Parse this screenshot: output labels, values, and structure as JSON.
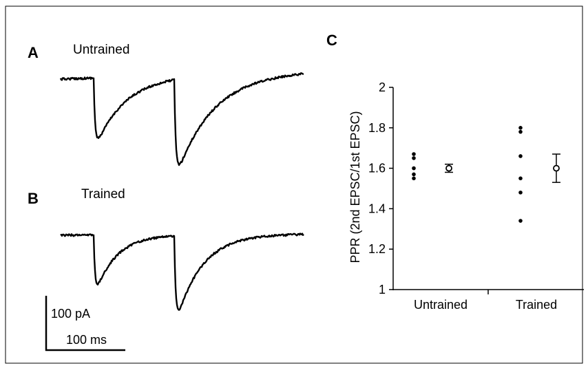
{
  "panels": {
    "a": {
      "letter": "A",
      "title": "Untrained"
    },
    "b": {
      "letter": "B",
      "title": "Trained"
    },
    "c": {
      "letter": "C"
    }
  },
  "scale_bar": {
    "vertical_label": "100 pA",
    "horizontal_label": "100 ms"
  },
  "chart_data": [
    {
      "type": "line",
      "title": "Untrained",
      "description_visible": "paired-pulse EPSC trace"
    },
    {
      "type": "line",
      "title": "Trained",
      "description_visible": "paired-pulse EPSC trace"
    },
    {
      "type": "scatter",
      "title": "",
      "xlabel": "",
      "ylabel": "PPR (2nd EPSC/1st EPSC)",
      "ylim": [
        1,
        2
      ],
      "yticks": [
        1,
        1.2,
        1.4,
        1.6,
        1.8,
        2
      ],
      "categories": [
        "Untrained",
        "Trained"
      ],
      "individual": {
        "Untrained": [
          1.67,
          1.65,
          1.6,
          1.57,
          1.55
        ],
        "Trained": [
          1.8,
          1.78,
          1.66,
          1.55,
          1.48,
          1.34
        ]
      },
      "mean": {
        "Untrained": 1.6,
        "Trained": 1.6
      },
      "error": {
        "Untrained": 0.02,
        "Trained": 0.07
      },
      "grid": false,
      "legend": "none"
    }
  ]
}
